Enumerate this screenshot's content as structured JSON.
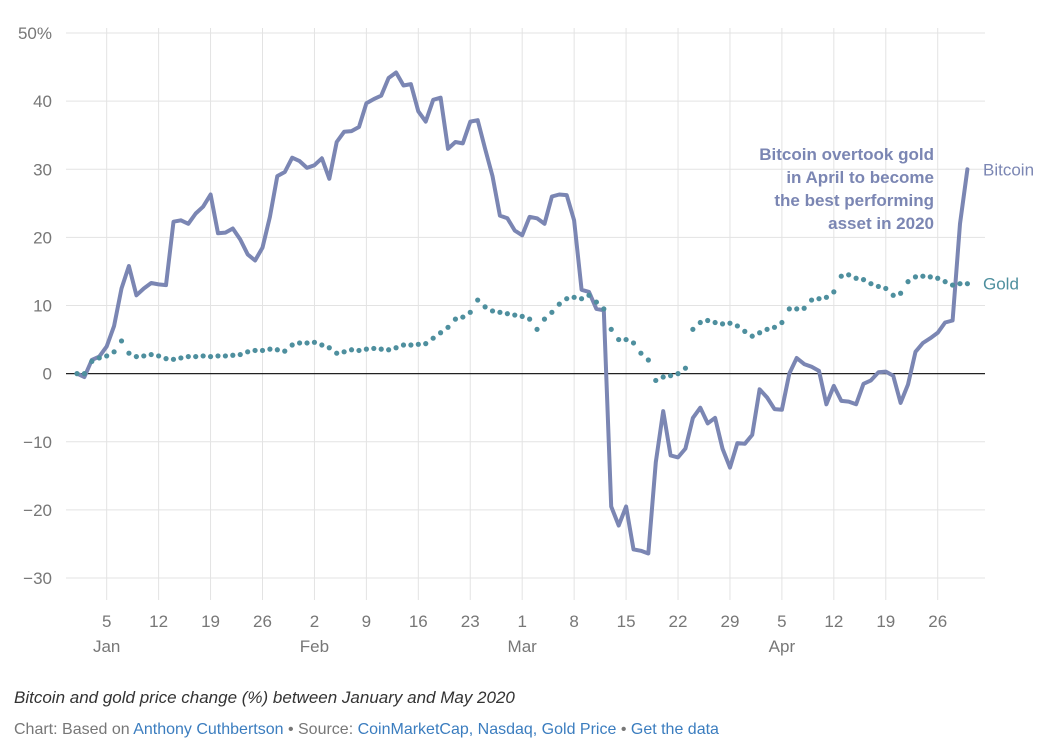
{
  "chart_data": {
    "type": "line",
    "y_unit": "%",
    "ylim": [
      -35,
      50
    ],
    "y_ticks": [
      50,
      40,
      30,
      20,
      10,
      0,
      -10,
      -20,
      -30
    ],
    "y_tick_labels": [
      "50%",
      "40",
      "30",
      "20",
      "10",
      "0",
      "−10",
      "−20",
      "−30"
    ],
    "x_ticks": [
      {
        "date": "2020-01-05",
        "label": "5"
      },
      {
        "date": "2020-01-12",
        "label": "12"
      },
      {
        "date": "2020-01-19",
        "label": "19"
      },
      {
        "date": "2020-01-26",
        "label": "26"
      },
      {
        "date": "2020-02-02",
        "label": "2"
      },
      {
        "date": "2020-02-09",
        "label": "9"
      },
      {
        "date": "2020-02-16",
        "label": "16"
      },
      {
        "date": "2020-02-23",
        "label": "23"
      },
      {
        "date": "2020-03-01",
        "label": "1"
      },
      {
        "date": "2020-03-08",
        "label": "8"
      },
      {
        "date": "2020-03-15",
        "label": "15"
      },
      {
        "date": "2020-03-22",
        "label": "22"
      },
      {
        "date": "2020-03-29",
        "label": "29"
      },
      {
        "date": "2020-04-05",
        "label": "5"
      },
      {
        "date": "2020-04-12",
        "label": "12"
      },
      {
        "date": "2020-04-19",
        "label": "19"
      },
      {
        "date": "2020-04-26",
        "label": "26"
      }
    ],
    "months": [
      {
        "date": "2020-01-05",
        "label": "Jan"
      },
      {
        "date": "2020-02-02",
        "label": "Feb"
      },
      {
        "date": "2020-03-01",
        "label": "Mar"
      },
      {
        "date": "2020-04-05",
        "label": "Apr"
      }
    ],
    "grid": true,
    "zero_line": true,
    "series": [
      {
        "name": "Bitcoin",
        "style": "solid",
        "color": "#7b86b3",
        "points": [
          [
            "2020-01-01",
            0
          ],
          [
            "2020-01-02",
            -0.5
          ],
          [
            "2020-01-03",
            2
          ],
          [
            "2020-01-04",
            2.5
          ],
          [
            "2020-01-05",
            4
          ],
          [
            "2020-01-06",
            7
          ],
          [
            "2020-01-07",
            12.5
          ],
          [
            "2020-01-08",
            15.8
          ],
          [
            "2020-01-09",
            11.5
          ],
          [
            "2020-01-10",
            12.5
          ],
          [
            "2020-01-11",
            13.3
          ],
          [
            "2020-01-12",
            13.1
          ],
          [
            "2020-01-13",
            13
          ],
          [
            "2020-01-14",
            22.3
          ],
          [
            "2020-01-15",
            22.5
          ],
          [
            "2020-01-16",
            22
          ],
          [
            "2020-01-17",
            23.5
          ],
          [
            "2020-01-18",
            24.5
          ],
          [
            "2020-01-19",
            26.3
          ],
          [
            "2020-01-20",
            20.6
          ],
          [
            "2020-01-21",
            20.7
          ],
          [
            "2020-01-22",
            21.3
          ],
          [
            "2020-01-23",
            19.7
          ],
          [
            "2020-01-24",
            17.5
          ],
          [
            "2020-01-25",
            16.6
          ],
          [
            "2020-01-26",
            18.5
          ],
          [
            "2020-01-27",
            23
          ],
          [
            "2020-01-28",
            29
          ],
          [
            "2020-01-29",
            29.6
          ],
          [
            "2020-01-30",
            31.7
          ],
          [
            "2020-01-31",
            31.2
          ],
          [
            "2020-02-01",
            30.2
          ],
          [
            "2020-02-02",
            30.6
          ],
          [
            "2020-02-03",
            31.6
          ],
          [
            "2020-02-04",
            28.6
          ],
          [
            "2020-02-05",
            34
          ],
          [
            "2020-02-06",
            35.5
          ],
          [
            "2020-02-07",
            35.6
          ],
          [
            "2020-02-08",
            36.2
          ],
          [
            "2020-02-09",
            39.7
          ],
          [
            "2020-02-10",
            40.3
          ],
          [
            "2020-02-11",
            40.8
          ],
          [
            "2020-02-12",
            43.4
          ],
          [
            "2020-02-13",
            44.2
          ],
          [
            "2020-02-14",
            42.3
          ],
          [
            "2020-02-15",
            42.5
          ],
          [
            "2020-02-16",
            38.5
          ],
          [
            "2020-02-17",
            37
          ],
          [
            "2020-02-18",
            40.2
          ],
          [
            "2020-02-19",
            40.5
          ],
          [
            "2020-02-20",
            33
          ],
          [
            "2020-02-21",
            34
          ],
          [
            "2020-02-22",
            33.8
          ],
          [
            "2020-02-23",
            37
          ],
          [
            "2020-02-24",
            37.2
          ],
          [
            "2020-02-25",
            33
          ],
          [
            "2020-02-26",
            29
          ],
          [
            "2020-02-27",
            23.2
          ],
          [
            "2020-02-28",
            22.8
          ],
          [
            "2020-02-29",
            21
          ],
          [
            "2020-03-01",
            20.3
          ],
          [
            "2020-03-02",
            23
          ],
          [
            "2020-03-03",
            22.8
          ],
          [
            "2020-03-04",
            22
          ],
          [
            "2020-03-05",
            26
          ],
          [
            "2020-03-06",
            26.3
          ],
          [
            "2020-03-07",
            26.2
          ],
          [
            "2020-03-08",
            22.5
          ],
          [
            "2020-03-09",
            12.3
          ],
          [
            "2020-03-10",
            12
          ],
          [
            "2020-03-11",
            9.5
          ],
          [
            "2020-03-12",
            9.3
          ],
          [
            "2020-03-13",
            -19.5
          ],
          [
            "2020-03-14",
            -22.3
          ],
          [
            "2020-03-15",
            -19.5
          ],
          [
            "2020-03-16",
            -25.8
          ],
          [
            "2020-03-17",
            -26
          ],
          [
            "2020-03-18",
            -26.4
          ],
          [
            "2020-03-19",
            -13
          ],
          [
            "2020-03-20",
            -5.5
          ],
          [
            "2020-03-21",
            -12
          ],
          [
            "2020-03-22",
            -12.3
          ],
          [
            "2020-03-23",
            -11
          ],
          [
            "2020-03-24",
            -6.5
          ],
          [
            "2020-03-25",
            -5
          ],
          [
            "2020-03-26",
            -7.3
          ],
          [
            "2020-03-27",
            -6.5
          ],
          [
            "2020-03-28",
            -11
          ],
          [
            "2020-03-29",
            -13.8
          ],
          [
            "2020-03-30",
            -10.2
          ],
          [
            "2020-03-31",
            -10.3
          ],
          [
            "2020-04-01",
            -9
          ],
          [
            "2020-04-02",
            -2.3
          ],
          [
            "2020-04-03",
            -3.5
          ],
          [
            "2020-04-04",
            -5.2
          ],
          [
            "2020-04-05",
            -5.3
          ],
          [
            "2020-04-06",
            0
          ],
          [
            "2020-04-07",
            2.3
          ],
          [
            "2020-04-08",
            1.4
          ],
          [
            "2020-04-09",
            1
          ],
          [
            "2020-04-10",
            0.4
          ],
          [
            "2020-04-11",
            -4.5
          ],
          [
            "2020-04-12",
            -1.8
          ],
          [
            "2020-04-13",
            -4
          ],
          [
            "2020-04-14",
            -4.1
          ],
          [
            "2020-04-15",
            -4.5
          ],
          [
            "2020-04-16",
            -1.5
          ],
          [
            "2020-04-17",
            -1
          ],
          [
            "2020-04-18",
            0.2
          ],
          [
            "2020-04-19",
            0.3
          ],
          [
            "2020-04-20",
            -0.3
          ],
          [
            "2020-04-21",
            -4.3
          ],
          [
            "2020-04-22",
            -1.6
          ],
          [
            "2020-04-23",
            3.2
          ],
          [
            "2020-04-24",
            4.5
          ],
          [
            "2020-04-25",
            5.2
          ],
          [
            "2020-04-26",
            6
          ],
          [
            "2020-04-27",
            7.5
          ],
          [
            "2020-04-28",
            7.8
          ],
          [
            "2020-04-29",
            22
          ],
          [
            "2020-04-30",
            30
          ]
        ]
      },
      {
        "name": "Gold",
        "style": "dotted",
        "color": "#4e8f9e",
        "points": [
          [
            "2020-01-01",
            0
          ],
          [
            "2020-01-02",
            0
          ],
          [
            "2020-01-03",
            1.8
          ],
          [
            "2020-01-04",
            2.3
          ],
          [
            "2020-01-05",
            2.6
          ],
          [
            "2020-01-06",
            3.2
          ],
          [
            "2020-01-07",
            4.8
          ],
          [
            "2020-01-08",
            3
          ],
          [
            "2020-01-09",
            2.5
          ],
          [
            "2020-01-10",
            2.6
          ],
          [
            "2020-01-11",
            2.8
          ],
          [
            "2020-01-12",
            2.6
          ],
          [
            "2020-01-13",
            2.2
          ],
          [
            "2020-01-14",
            2.1
          ],
          [
            "2020-01-15",
            2.3
          ],
          [
            "2020-01-16",
            2.5
          ],
          [
            "2020-01-17",
            2.5
          ],
          [
            "2020-01-18",
            2.6
          ],
          [
            "2020-01-19",
            2.5
          ],
          [
            "2020-01-20",
            2.6
          ],
          [
            "2020-01-21",
            2.6
          ],
          [
            "2020-01-22",
            2.7
          ],
          [
            "2020-01-23",
            2.8
          ],
          [
            "2020-01-24",
            3.2
          ],
          [
            "2020-01-25",
            3.4
          ],
          [
            "2020-01-26",
            3.4
          ],
          [
            "2020-01-27",
            3.6
          ],
          [
            "2020-01-28",
            3.5
          ],
          [
            "2020-01-29",
            3.3
          ],
          [
            "2020-01-30",
            4.2
          ],
          [
            "2020-01-31",
            4.5
          ],
          [
            "2020-02-01",
            4.5
          ],
          [
            "2020-02-02",
            4.6
          ],
          [
            "2020-02-03",
            4.2
          ],
          [
            "2020-02-04",
            3.8
          ],
          [
            "2020-02-05",
            3
          ],
          [
            "2020-02-06",
            3.2
          ],
          [
            "2020-02-07",
            3.5
          ],
          [
            "2020-02-08",
            3.4
          ],
          [
            "2020-02-09",
            3.6
          ],
          [
            "2020-02-10",
            3.7
          ],
          [
            "2020-02-11",
            3.6
          ],
          [
            "2020-02-12",
            3.5
          ],
          [
            "2020-02-13",
            3.8
          ],
          [
            "2020-02-14",
            4.2
          ],
          [
            "2020-02-15",
            4.2
          ],
          [
            "2020-02-16",
            4.3
          ],
          [
            "2020-02-17",
            4.4
          ],
          [
            "2020-02-18",
            5.2
          ],
          [
            "2020-02-19",
            6
          ],
          [
            "2020-02-20",
            6.8
          ],
          [
            "2020-02-21",
            8
          ],
          [
            "2020-02-22",
            8.3
          ],
          [
            "2020-02-23",
            9
          ],
          [
            "2020-02-24",
            10.8
          ],
          [
            "2020-02-25",
            9.8
          ],
          [
            "2020-02-26",
            9.2
          ],
          [
            "2020-02-27",
            9
          ],
          [
            "2020-02-28",
            8.8
          ],
          [
            "2020-02-29",
            8.6
          ],
          [
            "2020-03-01",
            8.4
          ],
          [
            "2020-03-02",
            8
          ],
          [
            "2020-03-03",
            6.5
          ],
          [
            "2020-03-04",
            8
          ],
          [
            "2020-03-05",
            9
          ],
          [
            "2020-03-06",
            10.2
          ],
          [
            "2020-03-07",
            11
          ],
          [
            "2020-03-08",
            11.2
          ],
          [
            "2020-03-09",
            11
          ],
          [
            "2020-03-10",
            11.5
          ],
          [
            "2020-03-11",
            10.5
          ],
          [
            "2020-03-12",
            9.5
          ],
          [
            "2020-03-13",
            6.5
          ],
          [
            "2020-03-14",
            5
          ],
          [
            "2020-03-15",
            5
          ],
          [
            "2020-03-16",
            4.5
          ],
          [
            "2020-03-17",
            3
          ],
          [
            "2020-03-18",
            2
          ],
          [
            "2020-03-19",
            -1
          ],
          [
            "2020-03-20",
            -0.5
          ],
          [
            "2020-03-21",
            -0.3
          ],
          [
            "2020-03-22",
            0
          ],
          [
            "2020-03-23",
            0.8
          ],
          [
            "2020-03-24",
            6.5
          ],
          [
            "2020-03-25",
            7.5
          ],
          [
            "2020-03-26",
            7.8
          ],
          [
            "2020-03-27",
            7.5
          ],
          [
            "2020-03-28",
            7.3
          ],
          [
            "2020-03-29",
            7.4
          ],
          [
            "2020-03-30",
            7
          ],
          [
            "2020-03-31",
            6.2
          ],
          [
            "2020-04-01",
            5.5
          ],
          [
            "2020-04-02",
            6
          ],
          [
            "2020-04-03",
            6.5
          ],
          [
            "2020-04-04",
            6.8
          ],
          [
            "2020-04-05",
            7.5
          ],
          [
            "2020-04-06",
            9.5
          ],
          [
            "2020-04-07",
            9.5
          ],
          [
            "2020-04-08",
            9.6
          ],
          [
            "2020-04-09",
            10.8
          ],
          [
            "2020-04-10",
            11
          ],
          [
            "2020-04-11",
            11.2
          ],
          [
            "2020-04-12",
            12
          ],
          [
            "2020-04-13",
            14.3
          ],
          [
            "2020-04-14",
            14.5
          ],
          [
            "2020-04-15",
            14
          ],
          [
            "2020-04-16",
            13.8
          ],
          [
            "2020-04-17",
            13.2
          ],
          [
            "2020-04-18",
            12.8
          ],
          [
            "2020-04-19",
            12.5
          ],
          [
            "2020-04-20",
            11.5
          ],
          [
            "2020-04-21",
            11.8
          ],
          [
            "2020-04-22",
            13.5
          ],
          [
            "2020-04-23",
            14.2
          ],
          [
            "2020-04-24",
            14.3
          ],
          [
            "2020-04-25",
            14.2
          ],
          [
            "2020-04-26",
            14
          ],
          [
            "2020-04-27",
            13.5
          ],
          [
            "2020-04-28",
            13
          ],
          [
            "2020-04-29",
            13.2
          ],
          [
            "2020-04-30",
            13.2
          ]
        ]
      }
    ],
    "annotation": {
      "lines": [
        "Bitcoin overtook gold",
        "in April to become",
        "the best performing",
        "asset in 2020"
      ],
      "color": "#7b86b3"
    }
  },
  "caption": "Bitcoin and gold price change (%) between January and May 2020",
  "credit": {
    "prefix": "Chart: Based on ",
    "author": "Anthony Cuthbertson",
    "sep1": " • Source: ",
    "sources": "CoinMarketCap, Nasdaq, Gold Price",
    "sep2": " • ",
    "get_data": "Get the data",
    "link_color": "#3b7dbf"
  }
}
